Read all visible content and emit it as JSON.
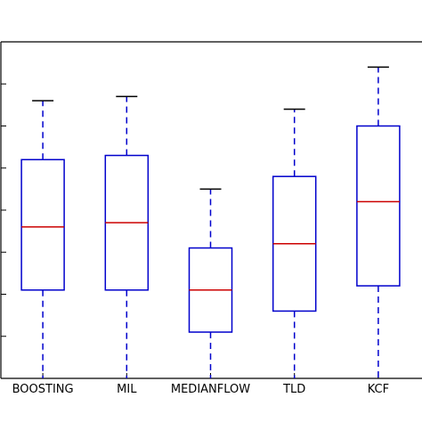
{
  "chart_data": {
    "type": "box",
    "categories": [
      "BOOSTING",
      "MIL",
      "MEDIANFLOW",
      "TLD",
      "KCF"
    ],
    "boxes": [
      {
        "name": "BOOSTING",
        "whislo": 0.0,
        "q1": 2.1,
        "median": 3.6,
        "q3": 5.2,
        "whishi": 6.6
      },
      {
        "name": "MIL",
        "whislo": 0.0,
        "q1": 2.1,
        "median": 3.7,
        "q3": 5.3,
        "whishi": 6.7
      },
      {
        "name": "MEDIANFLOW",
        "whislo": 0.0,
        "q1": 1.1,
        "median": 2.1,
        "q3": 3.1,
        "whishi": 4.5
      },
      {
        "name": "TLD",
        "whislo": 0.0,
        "q1": 1.6,
        "median": 3.2,
        "q3": 4.8,
        "whishi": 6.4
      },
      {
        "name": "KCF",
        "whislo": 0.0,
        "q1": 2.2,
        "median": 4.2,
        "q3": 6.0,
        "whishi": 7.4
      }
    ],
    "ylim": [
      0,
      8
    ],
    "yticks": [
      0,
      1,
      2,
      3,
      4,
      5,
      6,
      7,
      8
    ],
    "grid": false,
    "colors": {
      "box": "#0000cc",
      "median": "#cc0000",
      "whisker": "#0000cc",
      "cap": "#000000",
      "axis": "#000000"
    }
  }
}
